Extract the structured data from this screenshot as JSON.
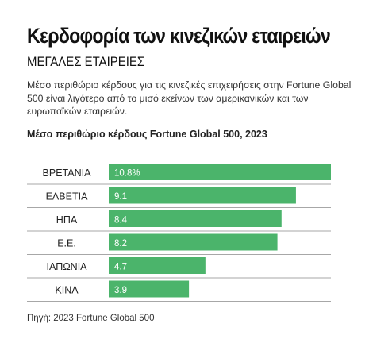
{
  "header": {
    "title": "Κερδοφορία των κινεζικών εταιρειών",
    "subtitle": "ΜΕΓΑΛΕΣ ΕΤΑΙΡΕΙΕΣ",
    "description": "Μέσο περιθώριο κέρδους για τις κινεζικές επιχειρήσεις στην Fortune Global 500 είναι λιγότερο από το μισό εκείνων των αμερικανικών και των ευρωπαϊκών εταιρειών."
  },
  "footer": {
    "source": "Πηγή: 2023 Fortune Global 500"
  },
  "colors": {
    "bar": "#4bb46b",
    "divider": "#8a8a8a",
    "label": "#222222",
    "value": "#ffffff"
  },
  "chart_data": {
    "type": "bar",
    "orientation": "horizontal",
    "title": "Μέσο περιθώριο κέρδους Fortune Global 500, 2023",
    "categories": [
      "ΒΡΕΤΑΝΙΑ",
      "ΕΛΒΕΤΙΑ",
      "ΗΠΑ",
      "Ε.Ε.",
      "ΙΑΠΩΝΙΑ",
      "ΚΙΝΑ"
    ],
    "values": [
      10.8,
      9.1,
      8.4,
      8.2,
      4.7,
      3.9
    ],
    "value_labels": [
      "10.8%",
      "9.1",
      "8.4",
      "8.2",
      "4.7",
      "3.9"
    ],
    "xlim": [
      0,
      10.8
    ],
    "grid": false,
    "legend": "none"
  }
}
